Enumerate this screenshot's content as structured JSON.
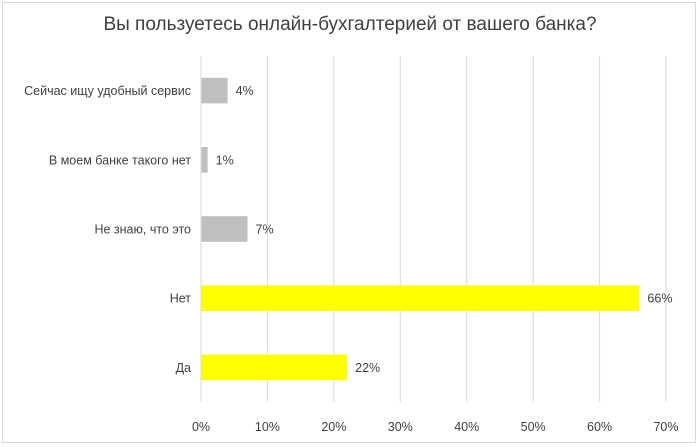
{
  "chart_data": {
    "type": "bar",
    "orientation": "horizontal",
    "title": "Вы пользуетесь онлайн-бухгалтерией от вашего банка?",
    "categories": [
      "Сейчас ищу удобный сервис",
      "В моем банке такого нет",
      "Не знаю, что это",
      "Нет",
      "Да"
    ],
    "values": [
      4,
      1,
      7,
      66,
      22
    ],
    "data_labels": [
      "4%",
      "1%",
      "7%",
      "66%",
      "22%"
    ],
    "bar_colors": [
      "#bfbfbf",
      "#bfbfbf",
      "#bfbfbf",
      "#ffff00",
      "#ffff00"
    ],
    "xlim": [
      0,
      70
    ],
    "x_ticks": [
      0,
      10,
      20,
      30,
      40,
      50,
      60,
      70
    ],
    "x_tick_labels": [
      "0%",
      "10%",
      "20%",
      "30%",
      "40%",
      "50%",
      "60%",
      "70%"
    ],
    "grid": true,
    "legend": "none",
    "xlabel": "",
    "ylabel": ""
  }
}
